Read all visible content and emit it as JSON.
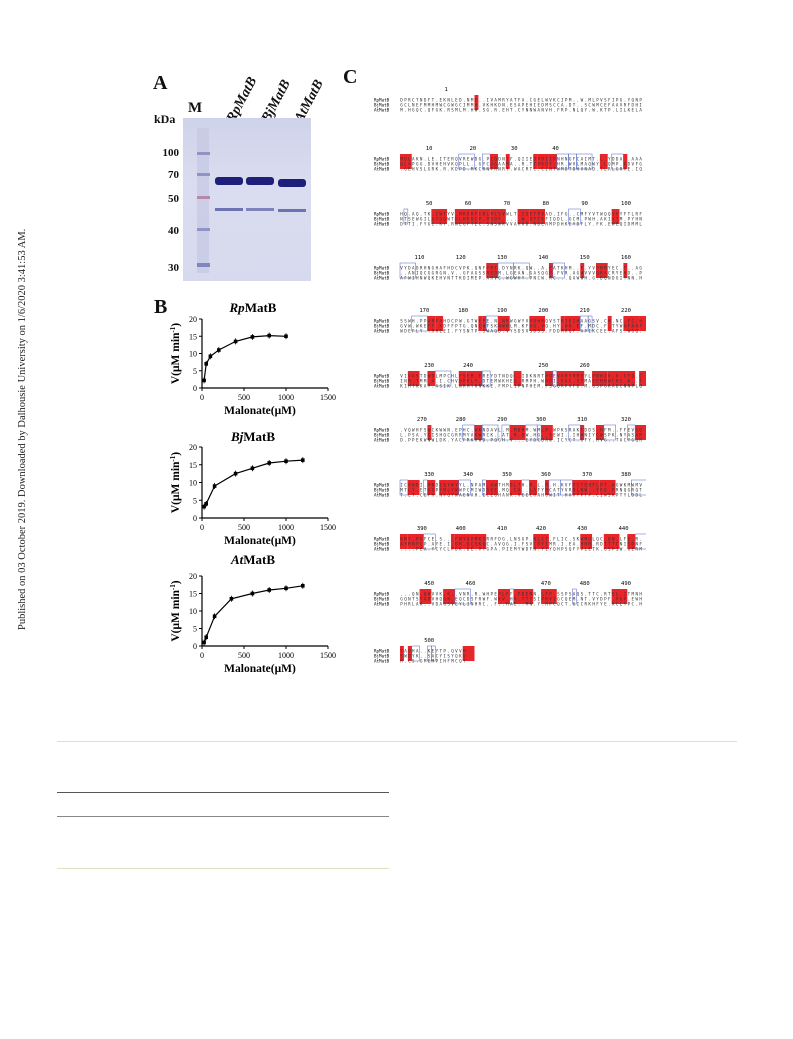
{
  "side_note": "Published on 03 October 2019. Downloaded by Dalhousie University on 1/6/2020 3:41:53 AM.",
  "panels": {
    "a": "A",
    "b": "B",
    "c": "C"
  },
  "gel": {
    "marker_lane_label": "M",
    "kda_label": "kDa",
    "lanes": [
      "RpMatB",
      "BjMatB",
      "AtMatB"
    ],
    "marker_labels": [
      "100",
      "70",
      "50",
      "40",
      "30"
    ]
  },
  "plot_labels": {
    "ylabel": "V(μM min",
    "ylabel_sup": "-1",
    "ylabel_close": ")",
    "xlabel": "Malonate(μM)"
  },
  "chart_data": [
    {
      "type": "scatter",
      "title": "RpMatB",
      "xlabel": "Malonate(μM)",
      "ylabel": "V(μM min-1)",
      "xlim": [
        0,
        1500
      ],
      "ylim": [
        0,
        20
      ],
      "xticks": [
        "0",
        "500",
        "1000",
        "1500"
      ],
      "yticks": [
        "0",
        "5",
        "10",
        "15",
        "20"
      ],
      "x": [
        25,
        50,
        100,
        200,
        400,
        600,
        800,
        1000
      ],
      "y": [
        2.2,
        7.0,
        9.2,
        11.0,
        13.5,
        14.8,
        15.2,
        15.0
      ]
    },
    {
      "type": "scatter",
      "title": "BjMatB",
      "xlabel": "Malonate(μM)",
      "ylabel": "V(μM min-1)",
      "xlim": [
        0,
        1500
      ],
      "ylim": [
        0,
        20
      ],
      "xticks": [
        "0",
        "500",
        "1000",
        "1500"
      ],
      "yticks": [
        "0",
        "5",
        "10",
        "15",
        "20"
      ],
      "x": [
        25,
        50,
        150,
        400,
        600,
        800,
        1000,
        1200
      ],
      "y": [
        3.2,
        4.0,
        9.0,
        12.5,
        14.0,
        15.5,
        16.0,
        16.3
      ]
    },
    {
      "type": "scatter",
      "title": "AtMatB",
      "xlabel": "Malonate(μM)",
      "ylabel": "V(μM min-1)",
      "xlim": [
        0,
        1500
      ],
      "ylim": [
        0,
        20
      ],
      "xticks": [
        "0",
        "500",
        "1000",
        "1500"
      ],
      "yticks": [
        "0",
        "5",
        "10",
        "15",
        "20"
      ],
      "x": [
        25,
        50,
        150,
        350,
        600,
        800,
        1000,
        1200
      ],
      "y": [
        1.0,
        2.5,
        8.5,
        13.5,
        15.0,
        16.0,
        16.5,
        17.2
      ]
    }
  ],
  "alignment": {
    "seq_names": [
      "RpMatB",
      "BjMatB",
      "AtMatB"
    ],
    "blocks": [
      {
        "ticks": [
          [
            "1",
            0.19
          ]
        ]
      },
      {
        "ticks": [
          [
            "10",
            0.12
          ],
          [
            "20",
            0.3
          ],
          [
            "30",
            0.47
          ],
          [
            "40",
            0.64
          ]
        ]
      },
      {
        "ticks": [
          [
            "50",
            0.12
          ],
          [
            "60",
            0.28
          ],
          [
            "70",
            0.44
          ],
          [
            "80",
            0.6
          ],
          [
            "90",
            0.76
          ],
          [
            "100",
            0.93
          ]
        ]
      },
      {
        "ticks": [
          [
            "110",
            0.08
          ],
          [
            "120",
            0.25
          ],
          [
            "130",
            0.42
          ],
          [
            "140",
            0.59
          ],
          [
            "150",
            0.76
          ],
          [
            "160",
            0.93
          ]
        ]
      },
      {
        "ticks": [
          [
            "170",
            0.1
          ],
          [
            "180",
            0.26
          ],
          [
            "190",
            0.42
          ],
          [
            "200",
            0.59
          ],
          [
            "210",
            0.76
          ],
          [
            "220",
            0.93
          ]
        ]
      },
      {
        "ticks": [
          [
            "230",
            0.12
          ],
          [
            "240",
            0.28
          ],
          [
            "250",
            0.59
          ],
          [
            "260",
            0.76
          ]
        ]
      },
      {
        "ticks": [
          [
            "270",
            0.09
          ],
          [
            "280",
            0.25
          ],
          [
            "290",
            0.42
          ],
          [
            "300",
            0.58
          ],
          [
            "310",
            0.75
          ],
          [
            "320",
            0.93
          ]
        ]
      },
      {
        "ticks": [
          [
            "330",
            0.12
          ],
          [
            "340",
            0.28
          ],
          [
            "350",
            0.44
          ],
          [
            "360",
            0.6
          ],
          [
            "370",
            0.77
          ],
          [
            "380",
            0.93
          ]
        ]
      },
      {
        "ticks": [
          [
            "390",
            0.09
          ],
          [
            "400",
            0.25
          ],
          [
            "410",
            0.42
          ],
          [
            "420",
            0.58
          ],
          [
            "430",
            0.75
          ],
          [
            "440",
            0.92
          ]
        ]
      },
      {
        "ticks": [
          [
            "450",
            0.12
          ],
          [
            "460",
            0.29
          ],
          [
            "470",
            0.6
          ],
          [
            "480",
            0.76
          ],
          [
            "490",
            0.93
          ]
        ]
      },
      {
        "ticks": [
          [
            "500",
            0.12
          ]
        ]
      }
    ]
  }
}
